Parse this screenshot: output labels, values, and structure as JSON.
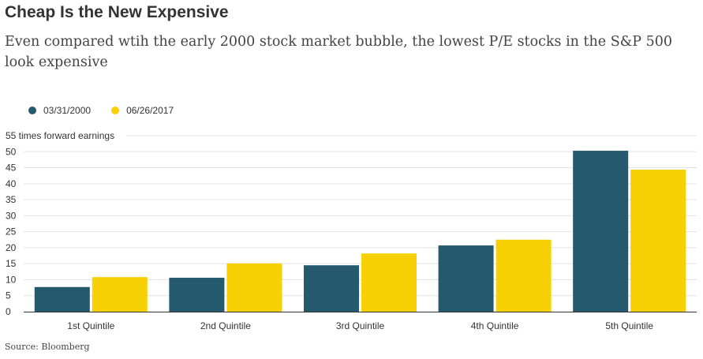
{
  "chart_data": {
    "type": "bar",
    "title": "Cheap Is the New Expensive",
    "subtitle": "Even compared wtih the early 2000 stock market bubble, the lowest P/E stocks in the S&P 500 look expensive",
    "ylabel": "55 times forward earnings",
    "xlabel": "",
    "categories": [
      "1st Quintile",
      "2nd Quintile",
      "3rd Quintile",
      "4th Quintile",
      "5th Quintile"
    ],
    "series": [
      {
        "name": "03/31/2000",
        "color": "#255a6e",
        "values": [
          7.7,
          10.6,
          14.5,
          20.7,
          50.3
        ]
      },
      {
        "name": "06/26/2017",
        "color": "#f7d106",
        "values": [
          10.8,
          15.1,
          18.2,
          22.5,
          44.4
        ]
      }
    ],
    "yticks": [
      0,
      5,
      10,
      15,
      20,
      25,
      30,
      35,
      40,
      45,
      50
    ],
    "ylim": [
      0,
      55
    ],
    "grid": true,
    "legend_position": "top-left",
    "source": "Source: Bloomberg"
  }
}
